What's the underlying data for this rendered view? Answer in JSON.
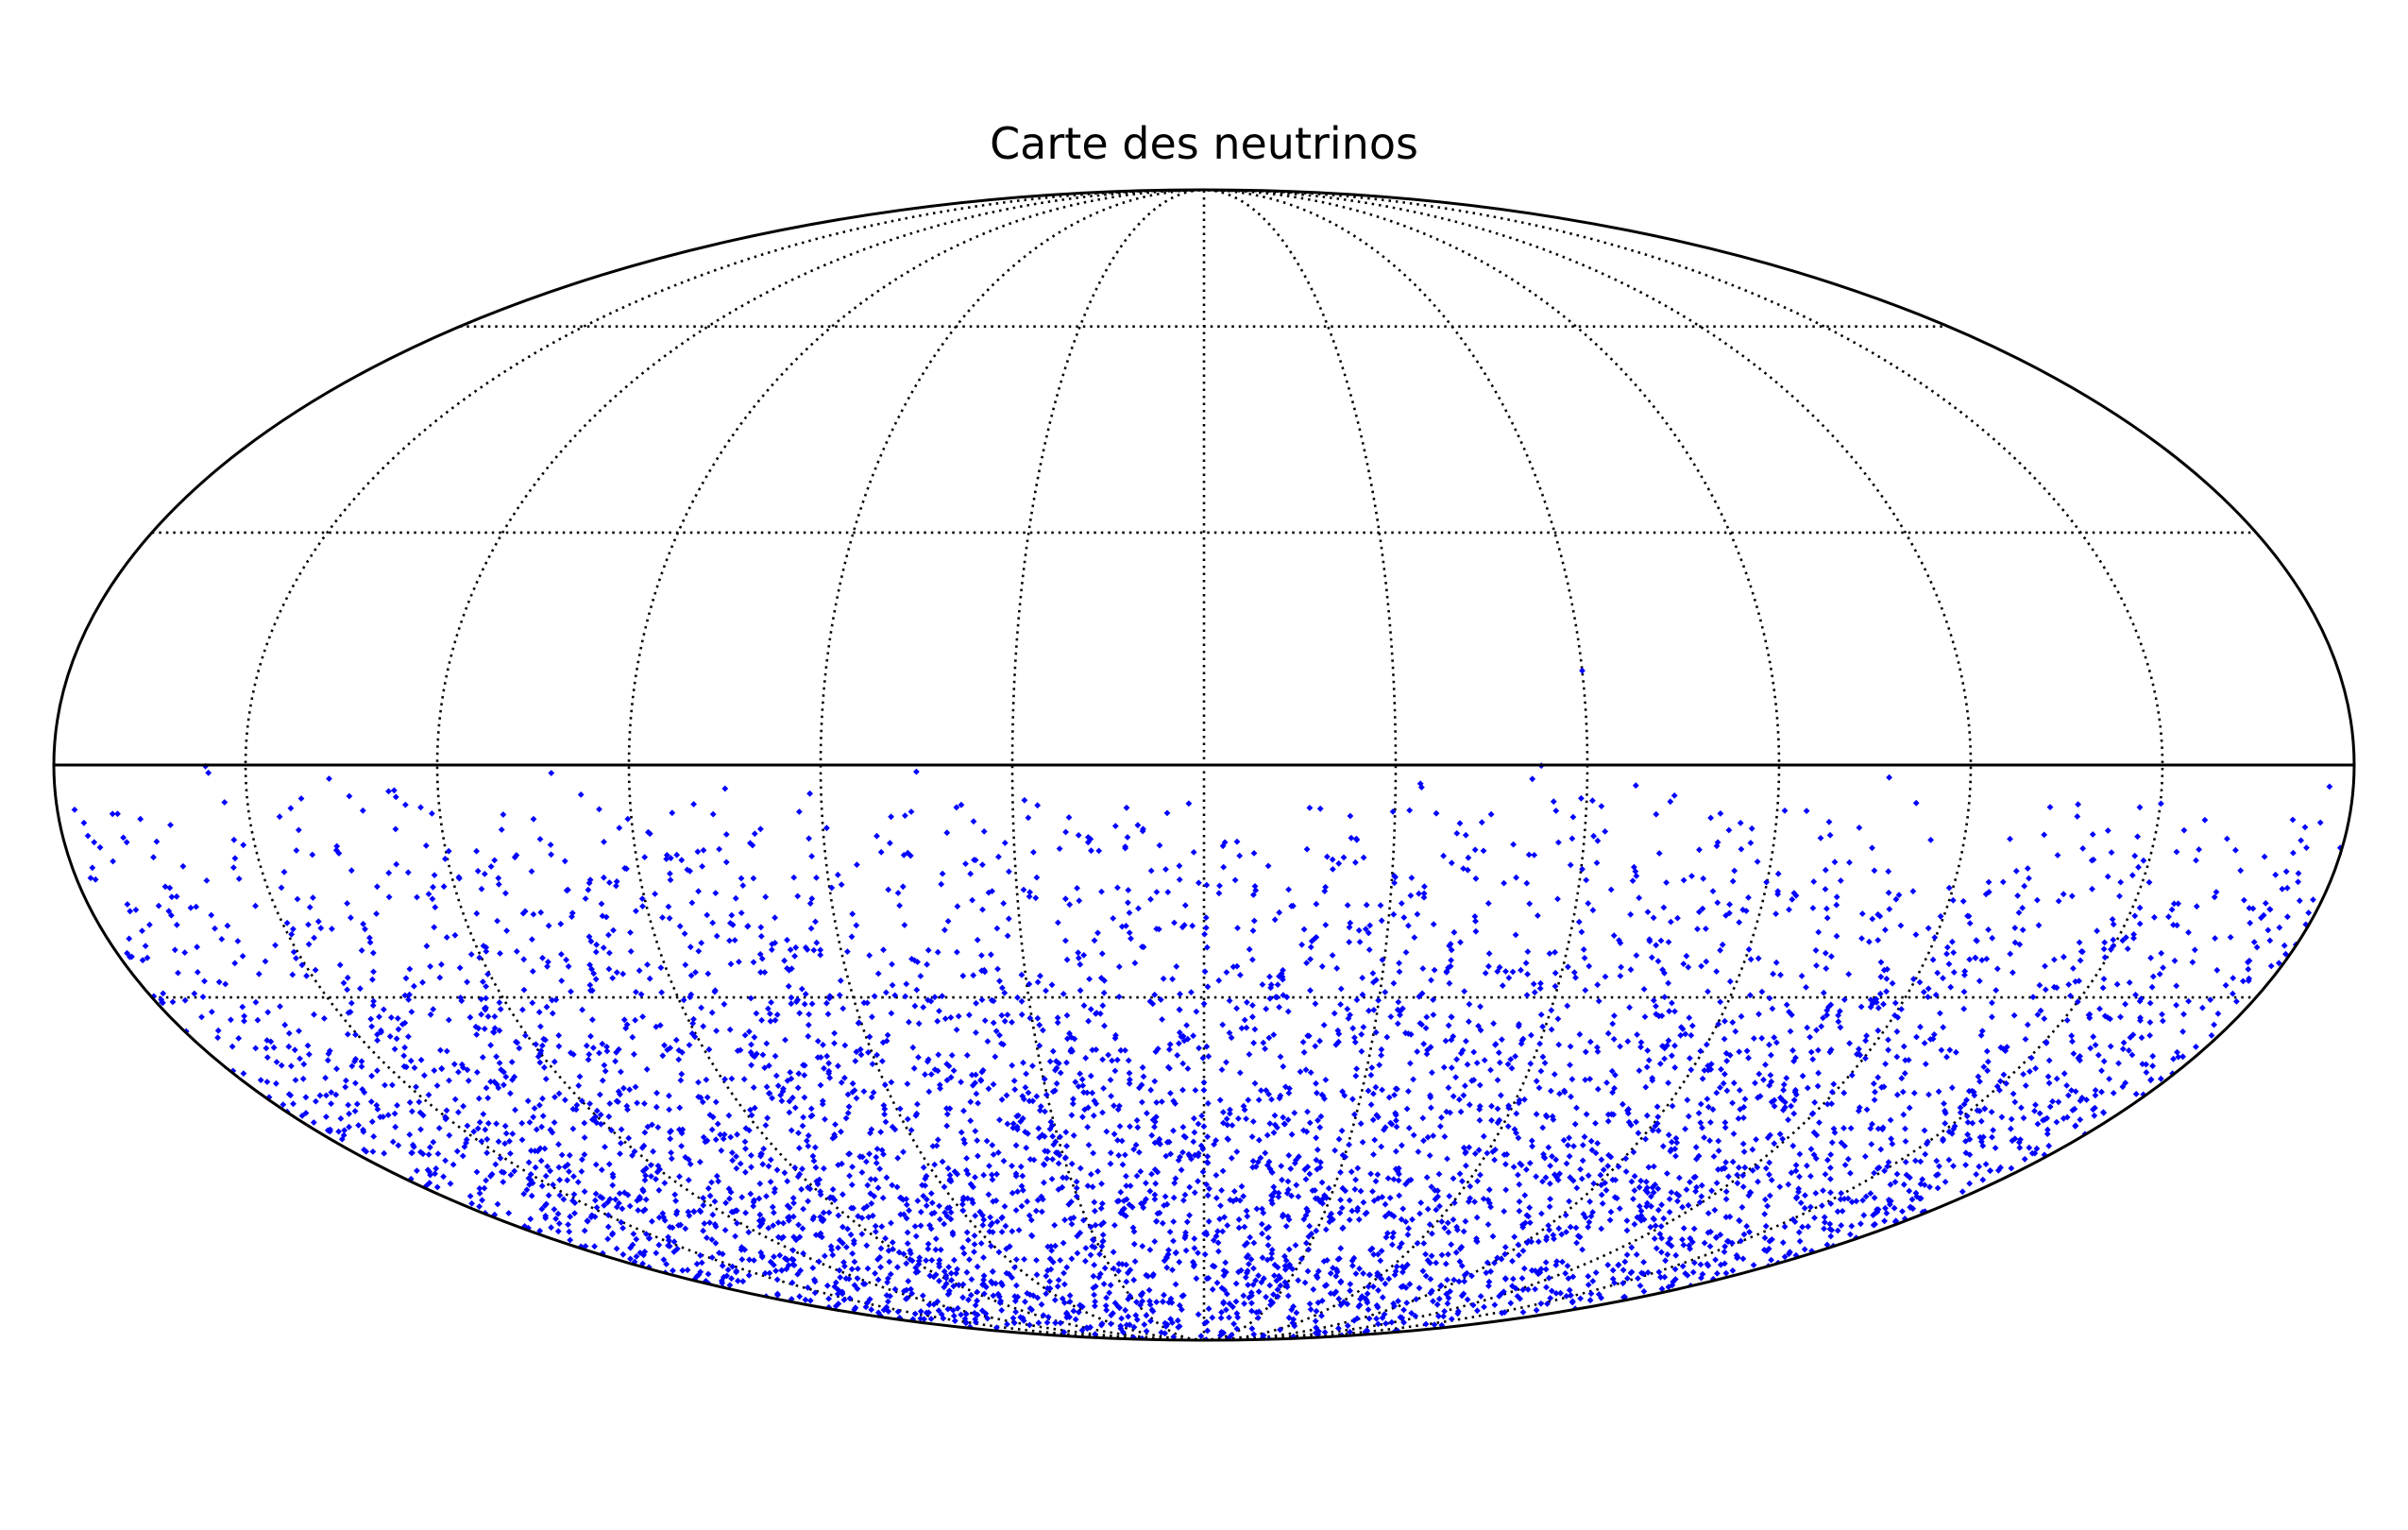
{
  "chart_data": {
    "type": "scatter",
    "projection": "mollweide",
    "title": "Carte des neutrinos",
    "xlabel": "",
    "ylabel": "",
    "xlim": [
      -180,
      180
    ],
    "ylim": [
      -90,
      90
    ],
    "grid": true,
    "grid_meridians_deg": [
      -150,
      -120,
      -90,
      -60,
      -30,
      0,
      30,
      60,
      90,
      120,
      150
    ],
    "grid_parallels_deg": [
      -30,
      30,
      60
    ],
    "equator_solid": true,
    "marker": "diamond",
    "colors": {
      "points": "#0000ff",
      "outline": "#000000",
      "grid": "#000000",
      "background": "#ffffff"
    },
    "distribution": {
      "approx_count": 5000,
      "lat_range_deg": [
        -90,
        0
      ],
      "description_note": "points concentrated in southern hemisphere, density increasing toward the south; one outlier in north"
    },
    "series": [
      {
        "values_sample": [
          {
            "x": 150.1,
            "y": -4.9
          },
          {
            "x": -176.0,
            "y": -9.0
          },
          {
            "x": 34.5,
            "y": -16.4
          },
          {
            "x": 110.8,
            "y": -18.4
          },
          {
            "x": -144.0,
            "y": -20.0
          },
          {
            "x": -137.0,
            "y": -21.0
          },
          {
            "x": 60.0,
            "y": 12.0
          }
        ]
      }
    ]
  }
}
